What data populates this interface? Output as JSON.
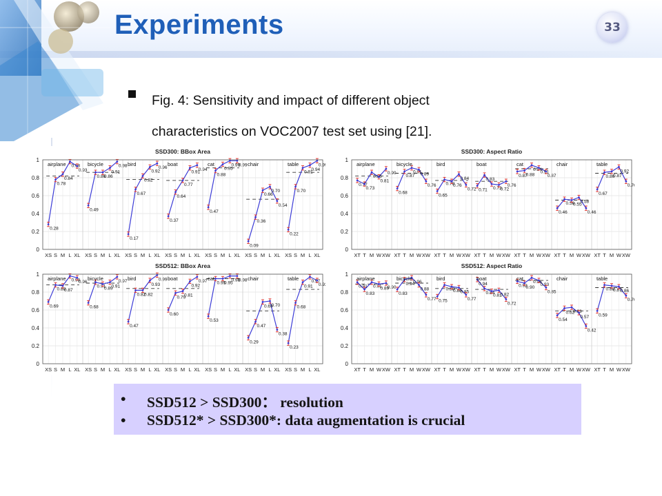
{
  "slide": {
    "title": "Experiments",
    "page_number": "33",
    "caption_line1": "Fig. 4: Sensitivity and impact of different object",
    "caption_line2": "characteristics on VOC2007 test set using [21].",
    "bullets": [
      {
        "marker": "•",
        "text": "SSD512 > SSD300： resolution"
      },
      {
        "marker": "•",
        "text": "SSD512* > SSD300*: data augmentation is crucial"
      }
    ],
    "colors": {
      "title": "#1f5fb8",
      "box_bg": "#d7d0ff",
      "line": "#3b3bd6",
      "errorbar": "#e0302a"
    }
  },
  "chart_data": [
    {
      "type": "line",
      "title": "SSD300: BBox Area",
      "tick_labels": [
        "XS",
        "S",
        "M",
        "L",
        "XL"
      ],
      "ylim": [
        0,
        1
      ],
      "yticks": [
        "0",
        "0.2",
        "0.4",
        "0.6",
        "0.8",
        "1"
      ],
      "grid": true,
      "groups": [
        {
          "name": "airplane",
          "values": [
            0.28,
            0.78,
            0.84,
            0.98,
            0.93
          ],
          "overall": 0.82
        },
        {
          "name": "bicycle",
          "values": [
            0.49,
            0.86,
            0.86,
            0.91,
            0.98
          ],
          "overall": 0.86
        },
        {
          "name": "bird",
          "values": [
            0.17,
            0.67,
            0.82,
            0.92,
            0.96
          ],
          "overall": 0.78
        },
        {
          "name": "boat",
          "values": [
            0.37,
            0.64,
            0.77,
            0.91,
            0.94
          ],
          "overall": 0.77
        },
        {
          "name": "cat",
          "values": [
            0.47,
            0.88,
            0.95,
            0.99,
            0.99
          ],
          "overall": 0.91
        },
        {
          "name": "chair",
          "values": [
            0.09,
            0.36,
            0.66,
            0.7,
            0.54
          ],
          "overall": 0.56
        },
        {
          "name": "table",
          "values": [
            0.22,
            0.7,
            0.91,
            0.94,
            0.99
          ],
          "overall": 0.86
        }
      ]
    },
    {
      "type": "line",
      "title": "SSD300: Aspect Ratio",
      "tick_labels": [
        "XT",
        "T",
        "M",
        "W",
        "XW"
      ],
      "ylim": [
        0,
        1
      ],
      "yticks": [
        "0",
        "0.2",
        "0.4",
        "0.6",
        "0.8",
        "1"
      ],
      "grid": true,
      "groups": [
        {
          "name": "airplane",
          "values": [
            0.77,
            0.73,
            0.86,
            0.81,
            0.9
          ],
          "overall": 0.82
        },
        {
          "name": "bicycle",
          "values": [
            0.68,
            0.87,
            0.91,
            0.89,
            0.76
          ],
          "overall": 0.85
        },
        {
          "name": "bird",
          "values": [
            0.65,
            0.78,
            0.76,
            0.84,
            0.72
          ],
          "overall": 0.77
        },
        {
          "name": "boat",
          "values": [
            0.71,
            0.83,
            0.73,
            0.72,
            0.76
          ],
          "overall": 0.76
        },
        {
          "name": "cat",
          "values": [
            0.87,
            0.88,
            0.94,
            0.91,
            0.87
          ],
          "overall": 0.9
        },
        {
          "name": "chair",
          "values": [
            0.46,
            0.56,
            0.55,
            0.58,
            0.46
          ],
          "overall": 0.55
        },
        {
          "name": "table",
          "values": [
            0.67,
            0.86,
            0.87,
            0.92,
            0.76
          ],
          "overall": 0.85
        }
      ]
    },
    {
      "type": "line",
      "title": "SSD512: BBox Area",
      "tick_labels": [
        "XS",
        "S",
        "M",
        "L",
        "XL"
      ],
      "ylim": [
        0,
        1
      ],
      "yticks": [
        "0",
        "0.2",
        "0.4",
        "0.6",
        "0.8",
        "1"
      ],
      "grid": true,
      "groups": [
        {
          "name": "airplane",
          "values": [
            0.69,
            0.88,
            0.87,
            0.98,
            0.96
          ],
          "overall": 0.88
        },
        {
          "name": "bicycle",
          "values": [
            0.68,
            0.91,
            0.89,
            0.91,
            0.97
          ],
          "overall": 0.9
        },
        {
          "name": "bird",
          "values": [
            0.47,
            0.82,
            0.82,
            0.93,
            0.99
          ],
          "overall": 0.84
        },
        {
          "name": "boat",
          "values": [
            0.6,
            0.79,
            0.81,
            0.92,
            0.97
          ],
          "overall": 0.84
        },
        {
          "name": "cat",
          "values": [
            0.53,
            0.95,
            0.95,
            0.98,
            0.98
          ],
          "overall": 0.95
        },
        {
          "name": "chair",
          "values": [
            0.29,
            0.47,
            0.69,
            0.7,
            0.38
          ],
          "overall": 0.59
        },
        {
          "name": "table",
          "values": [
            0.23,
            0.68,
            0.91,
            0.97,
            0.93
          ],
          "overall": 0.83
        }
      ]
    },
    {
      "type": "line",
      "title": "SSD512: Aspect Ratio",
      "tick_labels": [
        "XT",
        "T",
        "M",
        "W",
        "XW"
      ],
      "ylim": [
        0,
        1
      ],
      "yticks": [
        "0",
        "0.2",
        "0.4",
        "0.6",
        "0.8",
        "1"
      ],
      "grid": true,
      "groups": [
        {
          "name": "airplane",
          "values": [
            0.91,
            0.83,
            0.91,
            0.89,
            0.9
          ],
          "overall": 0.89
        },
        {
          "name": "bicycle",
          "values": [
            0.83,
            0.94,
            0.96,
            0.88,
            0.77
          ],
          "overall": 0.9
        },
        {
          "name": "bird",
          "values": [
            0.75,
            0.88,
            0.86,
            0.85,
            0.77
          ],
          "overall": 0.84
        },
        {
          "name": "boat",
          "values": [
            0.94,
            0.84,
            0.81,
            0.82,
            0.72
          ],
          "overall": 0.83
        },
        {
          "name": "cat",
          "values": [
            0.92,
            0.9,
            0.96,
            0.93,
            0.85
          ],
          "overall": 0.93
        },
        {
          "name": "chair",
          "values": [
            0.54,
            0.62,
            0.63,
            0.57,
            0.42
          ],
          "overall": 0.59
        },
        {
          "name": "table",
          "values": [
            0.59,
            0.88,
            0.87,
            0.86,
            0.76
          ],
          "overall": 0.85
        }
      ]
    }
  ]
}
